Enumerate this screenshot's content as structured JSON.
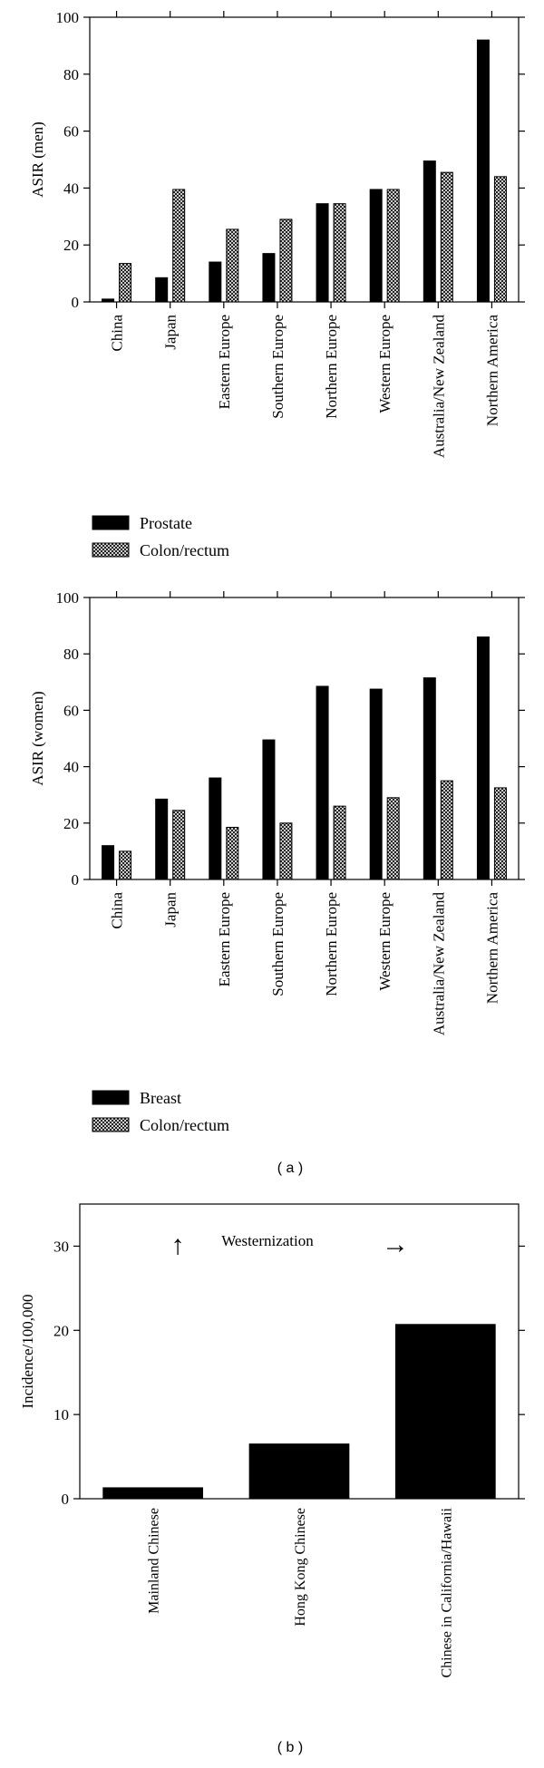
{
  "chart_data": [
    {
      "type": "bar",
      "ylabel": "ASIR (men)",
      "ylim": [
        0,
        100
      ],
      "yticks": [
        0,
        20,
        40,
        60,
        80,
        100
      ],
      "categories": [
        "China",
        "Japan",
        "Eastern Europe",
        "Southern Europe",
        "Northern Europe",
        "Western Europe",
        "Australia/New Zealand",
        "Northern America"
      ],
      "series": [
        {
          "name": "Prostate",
          "pattern": "solid",
          "values": [
            1,
            8.5,
            14,
            17,
            34.5,
            39.5,
            49.5,
            92
          ]
        },
        {
          "name": "Colon/rectum",
          "pattern": "crosshatch",
          "values": [
            13.5,
            39.5,
            25.5,
            29,
            34.5,
            39.5,
            45.5,
            44
          ]
        }
      ],
      "legend": "bottom-left"
    },
    {
      "type": "bar",
      "ylabel": "ASIR (women)",
      "ylim": [
        0,
        100
      ],
      "yticks": [
        0,
        20,
        40,
        60,
        80,
        100
      ],
      "categories": [
        "China",
        "Japan",
        "Eastern Europe",
        "Southern Europe",
        "Northern Europe",
        "Western Europe",
        "Australia/New Zealand",
        "Northern America"
      ],
      "series": [
        {
          "name": "Breast",
          "pattern": "solid",
          "values": [
            12,
            28.5,
            36,
            49.5,
            68.5,
            67.5,
            71.5,
            86
          ]
        },
        {
          "name": "Colon/rectum",
          "pattern": "crosshatch",
          "values": [
            10,
            24.5,
            18.5,
            20,
            26,
            29,
            35,
            32.5
          ]
        }
      ],
      "legend": "bottom-left"
    },
    {
      "type": "bar",
      "ylabel": "Incidence/100,000",
      "ylim": [
        0,
        35
      ],
      "yticks": [
        0,
        10,
        20,
        30
      ],
      "categories": [
        "Mainland Chinese",
        "Hong Kong Chinese",
        "Chinese in California/Hawaii"
      ],
      "values": [
        1.3,
        6.5,
        20.7
      ],
      "annotation": {
        "text": "Westernization",
        "left_arrow": "↑",
        "right_arrow": "→"
      }
    }
  ],
  "captions": {
    "a": "( a )",
    "b": "( b )"
  }
}
